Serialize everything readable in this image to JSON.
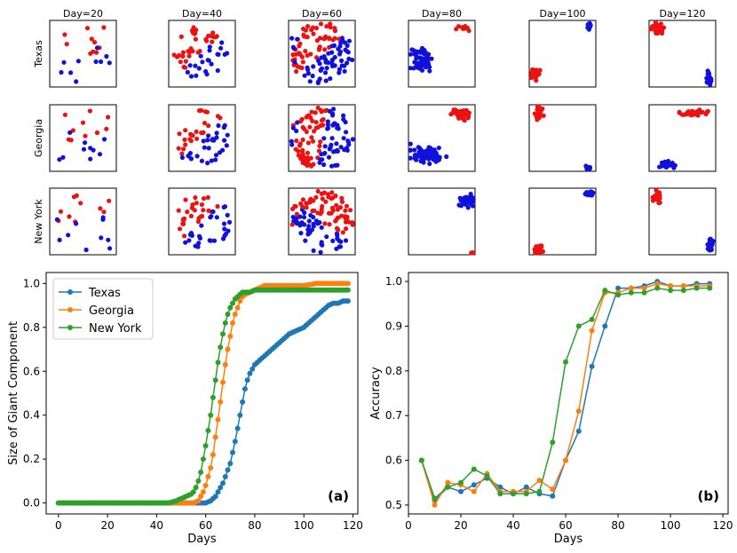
{
  "scatter_panels": {
    "day_titles": [
      "Day=20",
      "Day=40",
      "Day=60",
      "Day=80",
      "Day=100",
      "Day=120"
    ],
    "row_labels": [
      "Texas",
      "Georgia",
      "New York"
    ],
    "colors": {
      "red": "#ee1111",
      "blue": "#1111dd"
    }
  },
  "chart_data": [
    {
      "type": "line",
      "panel_label": "(a)",
      "xlabel": "Days",
      "ylabel": "Size of Giant Component",
      "xlim": [
        -5,
        122
      ],
      "ylim": [
        -0.05,
        1.05
      ],
      "xticks": [
        "0",
        "20",
        "40",
        "60",
        "80",
        "100",
        "120"
      ],
      "yticks": [
        "0.0",
        "0.2",
        "0.4",
        "0.6",
        "0.8",
        "1.0"
      ],
      "legend": {
        "placement": "top-left"
      },
      "series": [
        {
          "name": "Texas",
          "color": "#1f77b4",
          "x": [
            0,
            60,
            62,
            63,
            64,
            65,
            66,
            67,
            68,
            69,
            70,
            71,
            72,
            73,
            74,
            75,
            76,
            77,
            78,
            79,
            80,
            82,
            84,
            86,
            88,
            90,
            92,
            94,
            96,
            98,
            100,
            102,
            104,
            106,
            108,
            110,
            112,
            114,
            116,
            118
          ],
          "y": [
            0,
            0,
            0.01,
            0.02,
            0.03,
            0.05,
            0.07,
            0.09,
            0.12,
            0.15,
            0.18,
            0.23,
            0.28,
            0.34,
            0.4,
            0.46,
            0.52,
            0.56,
            0.59,
            0.61,
            0.63,
            0.65,
            0.67,
            0.69,
            0.71,
            0.73,
            0.75,
            0.77,
            0.78,
            0.79,
            0.8,
            0.82,
            0.84,
            0.86,
            0.88,
            0.9,
            0.91,
            0.91,
            0.92,
            0.92
          ]
        },
        {
          "name": "Georgia",
          "color": "#ff7f0e",
          "x": [
            0,
            55,
            57,
            58,
            59,
            60,
            61,
            62,
            63,
            64,
            65,
            66,
            67,
            68,
            69,
            70,
            71,
            72,
            73,
            74,
            75,
            76,
            78,
            80,
            82,
            84,
            86,
            88,
            90,
            95,
            100,
            105,
            110,
            115,
            118
          ],
          "y": [
            0,
            0,
            0.01,
            0.03,
            0.05,
            0.08,
            0.12,
            0.16,
            0.22,
            0.3,
            0.38,
            0.46,
            0.55,
            0.63,
            0.7,
            0.76,
            0.82,
            0.86,
            0.89,
            0.92,
            0.94,
            0.95,
            0.96,
            0.97,
            0.98,
            0.99,
            0.99,
            0.99,
            0.99,
            0.99,
            0.99,
            1.0,
            1.0,
            1.0,
            1.0
          ]
        },
        {
          "name": "New York",
          "color": "#2ca02c",
          "x": [
            0,
            45,
            48,
            50,
            52,
            54,
            55,
            56,
            57,
            58,
            59,
            60,
            61,
            62,
            63,
            64,
            65,
            66,
            67,
            68,
            69,
            70,
            71,
            72,
            73,
            74,
            75,
            76,
            78,
            80,
            85,
            90,
            95,
            100,
            105,
            110,
            115,
            118
          ],
          "y": [
            0,
            0,
            0.01,
            0.02,
            0.03,
            0.04,
            0.05,
            0.07,
            0.1,
            0.14,
            0.2,
            0.26,
            0.33,
            0.4,
            0.48,
            0.56,
            0.64,
            0.71,
            0.77,
            0.82,
            0.86,
            0.89,
            0.91,
            0.93,
            0.94,
            0.95,
            0.96,
            0.96,
            0.96,
            0.97,
            0.97,
            0.97,
            0.97,
            0.97,
            0.97,
            0.97,
            0.97,
            0.97
          ]
        }
      ]
    },
    {
      "type": "line",
      "panel_label": "(b)",
      "xlabel": "Days",
      "ylabel": "Accuracy",
      "xlim": [
        0,
        122
      ],
      "ylim": [
        0.48,
        1.02
      ],
      "xticks": [
        "0",
        "20",
        "40",
        "60",
        "80",
        "100",
        "120"
      ],
      "yticks": [
        "0.5",
        "0.6",
        "0.7",
        "0.8",
        "0.9",
        "1.0"
      ],
      "series": [
        {
          "name": "Texas",
          "color": "#1f77b4",
          "x": [
            5,
            10,
            15,
            20,
            25,
            30,
            35,
            40,
            45,
            50,
            55,
            60,
            65,
            70,
            75,
            80,
            85,
            90,
            95,
            100,
            105,
            110,
            115
          ],
          "y": [
            0.6,
            0.51,
            0.54,
            0.53,
            0.545,
            0.56,
            0.54,
            0.525,
            0.54,
            0.525,
            0.52,
            0.6,
            0.665,
            0.81,
            0.9,
            0.985,
            0.985,
            0.99,
            1.0,
            0.99,
            0.99,
            0.995,
            0.995
          ]
        },
        {
          "name": "Georgia",
          "color": "#ff7f0e",
          "x": [
            5,
            10,
            15,
            20,
            25,
            30,
            35,
            40,
            45,
            50,
            55,
            60,
            65,
            70,
            75,
            80,
            85,
            90,
            95,
            100,
            105,
            110,
            115
          ],
          "y": [
            0.6,
            0.5,
            0.55,
            0.545,
            0.53,
            0.57,
            0.53,
            0.53,
            0.53,
            0.555,
            0.535,
            0.6,
            0.71,
            0.89,
            0.975,
            0.975,
            0.985,
            0.985,
            0.995,
            0.99,
            0.99,
            0.99,
            0.99
          ]
        },
        {
          "name": "New York",
          "color": "#2ca02c",
          "x": [
            5,
            10,
            15,
            20,
            25,
            30,
            35,
            40,
            45,
            50,
            55,
            60,
            65,
            70,
            75,
            80,
            85,
            90,
            95,
            100,
            105,
            110,
            115
          ],
          "y": [
            0.6,
            0.515,
            0.54,
            0.55,
            0.58,
            0.565,
            0.525,
            0.525,
            0.525,
            0.53,
            0.64,
            0.82,
            0.9,
            0.915,
            0.98,
            0.97,
            0.975,
            0.975,
            0.985,
            0.98,
            0.98,
            0.985,
            0.985
          ]
        }
      ]
    }
  ]
}
